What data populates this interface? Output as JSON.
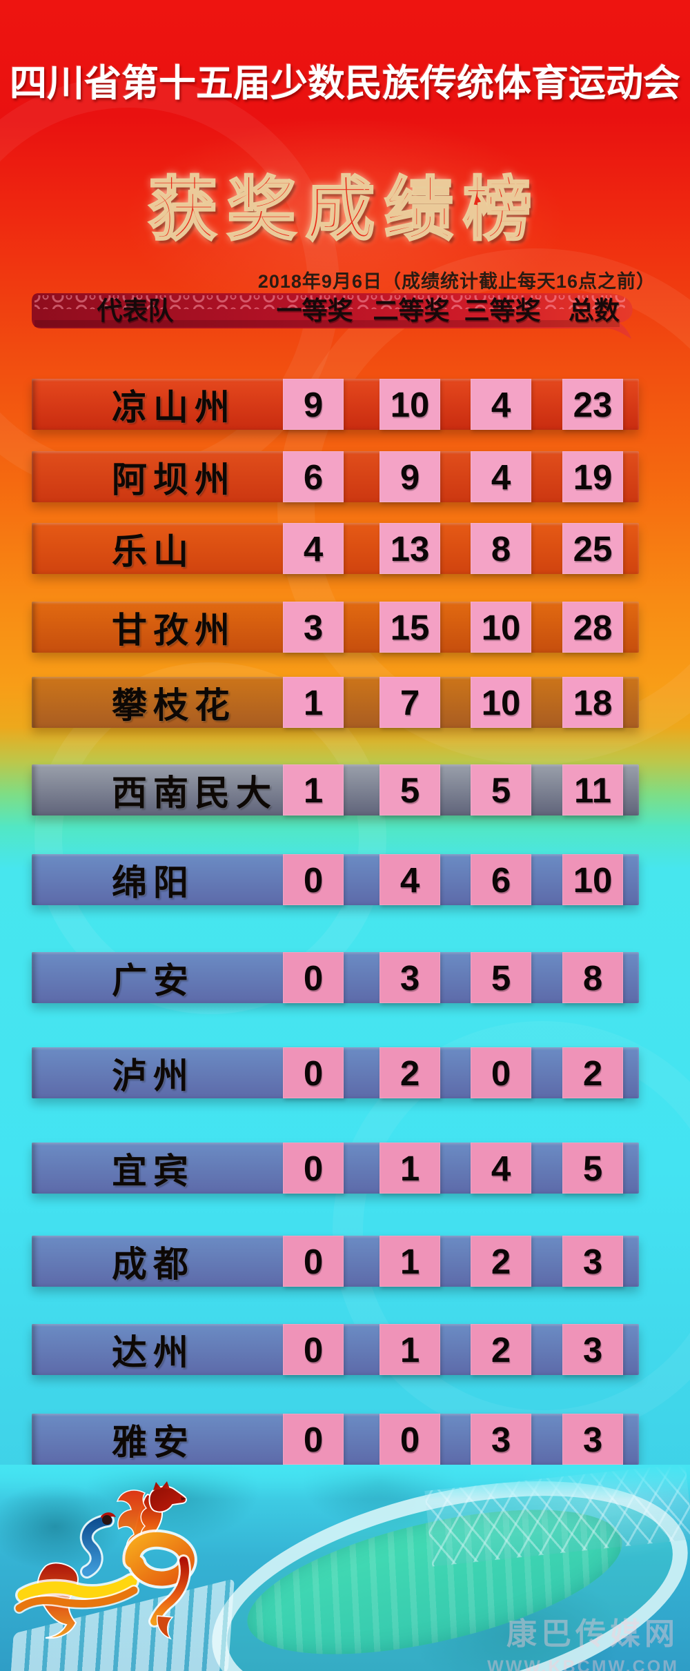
{
  "poster": {
    "title": "四川省第十五届少数民族传统体育运动会",
    "subtitle": "获奖成绩榜",
    "date_note": "2018年9月6日（成绩统计截止每天16点之前）",
    "colors": {
      "background_top_red": "#ec1310",
      "background_orange": "#f79a16",
      "background_green": "#7fe08b",
      "background_cyan": "#45e5f2",
      "header_bar_red": "#b51226",
      "subtitle_red": "#e82b1a",
      "cell_pink": "#f2a0c2",
      "row_blue": "#6b8cc4"
    }
  },
  "table": {
    "columns": [
      "代表队",
      "一等奖",
      "二等奖",
      "三等奖",
      "总数"
    ],
    "rows": [
      {
        "team": "凉山州",
        "first": 9,
        "second": 10,
        "third": 4,
        "total": 23,
        "bar_colors": [
          "#e5481d",
          "#c92c10"
        ],
        "cell_color": "#f4a3c6"
      },
      {
        "team": "阿坝州",
        "first": 6,
        "second": 9,
        "third": 4,
        "total": 19,
        "bar_colors": [
          "#e14e1b",
          "#cc3711"
        ],
        "cell_color": "#f4a3c6"
      },
      {
        "team": "乐山",
        "first": 4,
        "second": 13,
        "third": 8,
        "total": 25,
        "bar_colors": [
          "#e65a15",
          "#d0430f"
        ],
        "cell_color": "#f4a3c6"
      },
      {
        "team": "甘孜州",
        "first": 3,
        "second": 15,
        "third": 10,
        "total": 28,
        "bar_colors": [
          "#e26a10",
          "#c64e0e"
        ],
        "cell_color": "#f4a0c4"
      },
      {
        "team": "攀枝花",
        "first": 1,
        "second": 7,
        "third": 10,
        "total": 18,
        "bar_colors": [
          "#cd7519",
          "#a95d22"
        ],
        "cell_color": "#f49fc6"
      },
      {
        "team": "西南民大",
        "first": 1,
        "second": 5,
        "third": 5,
        "total": 11,
        "bar_colors": [
          "#9aa0ab",
          "#60647a"
        ],
        "cell_color": "#f29dc1"
      },
      {
        "team": "绵阳",
        "first": 0,
        "second": 4,
        "third": 6,
        "total": 10,
        "bar_colors": [
          "#6b8cc4",
          "#5d6aa9"
        ],
        "cell_color": "#ef93b8"
      },
      {
        "team": "广安",
        "first": 0,
        "second": 3,
        "third": 5,
        "total": 8,
        "bar_colors": [
          "#6b8cc4",
          "#5d6aa9"
        ],
        "cell_color": "#ef93b8"
      },
      {
        "team": "泸州",
        "first": 0,
        "second": 2,
        "third": 0,
        "total": 2,
        "bar_colors": [
          "#6b8cc4",
          "#5d6aa9"
        ],
        "cell_color": "#ef93b8"
      },
      {
        "team": "宜宾",
        "first": 0,
        "second": 1,
        "third": 4,
        "total": 5,
        "bar_colors": [
          "#6b8cc4",
          "#5d6aa9"
        ],
        "cell_color": "#ef93b8"
      },
      {
        "team": "成都",
        "first": 0,
        "second": 1,
        "third": 2,
        "total": 3,
        "bar_colors": [
          "#6b8cc4",
          "#5d6aa9"
        ],
        "cell_color": "#ef93b8"
      },
      {
        "team": "达州",
        "first": 0,
        "second": 1,
        "third": 2,
        "total": 3,
        "bar_colors": [
          "#6b8cc4",
          "#5d6aa9"
        ],
        "cell_color": "#ef93b8"
      },
      {
        "team": "雅安",
        "first": 0,
        "second": 0,
        "third": 3,
        "total": 3,
        "bar_colors": [
          "#6b8cc4",
          "#5d6aa9"
        ],
        "cell_color": "#ef93b8"
      }
    ]
  },
  "footer": {
    "mascot_icon": "flame-horse-mascot",
    "scene": "stadium-aerial-photo",
    "watermark_name": "康巴传媒网",
    "watermark_url": "WWW.KBCMW.COM"
  },
  "chart_data": {
    "type": "table",
    "title": "四川省第十五届少数民族传统体育运动会 获奖成绩榜",
    "note": "2018年9月6日（成绩统计截止每天16点之前）",
    "columns": [
      "代表队",
      "一等奖",
      "二等奖",
      "三等奖",
      "总数"
    ],
    "rows": [
      [
        "凉山州",
        9,
        10,
        4,
        23
      ],
      [
        "阿坝州",
        6,
        9,
        4,
        19
      ],
      [
        "乐山",
        4,
        13,
        8,
        25
      ],
      [
        "甘孜州",
        3,
        15,
        10,
        28
      ],
      [
        "攀枝花",
        1,
        7,
        10,
        18
      ],
      [
        "西南民大",
        1,
        5,
        5,
        11
      ],
      [
        "绵阳",
        0,
        4,
        6,
        10
      ],
      [
        "广安",
        0,
        3,
        5,
        8
      ],
      [
        "泸州",
        0,
        2,
        0,
        2
      ],
      [
        "宜宾",
        0,
        1,
        4,
        5
      ],
      [
        "成都",
        0,
        1,
        2,
        3
      ],
      [
        "达州",
        0,
        1,
        2,
        3
      ],
      [
        "雅安",
        0,
        0,
        3,
        3
      ]
    ]
  }
}
